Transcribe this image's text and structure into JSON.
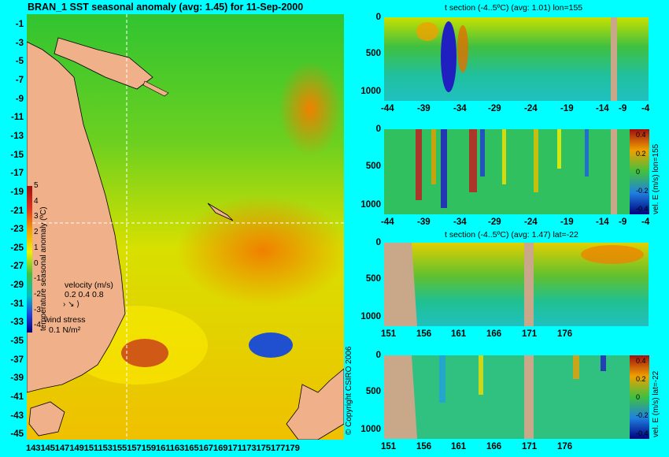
{
  "map": {
    "title": "BRAN_1  SST seasonal anomaly  (avg: 1.45) for 11-Sep-2000",
    "lat_ticks": [
      "-1",
      "-3",
      "-5",
      "-7",
      "-9",
      "-11",
      "-13",
      "-15",
      "-17",
      "-19",
      "-21",
      "-23",
      "-25",
      "-27",
      "-29",
      "-31",
      "-33",
      "-35",
      "-37",
      "-39",
      "-41",
      "-43",
      "-45"
    ],
    "lon_ticks_text": "143145147149151153155157159161163165167169171173175177179",
    "colorbar": {
      "label": "temperature seasonal anomaly (ºC)",
      "ticks": [
        "5",
        "4",
        "3",
        "2",
        "1",
        "0",
        "-1",
        "-2",
        "-3",
        "-4"
      ]
    },
    "velocity_key": {
      "label": "velocity (m/s)",
      "values": "0.2 0.4 0.8"
    },
    "wind_key": {
      "label": "wind stress",
      "value": "0.1 N/m²"
    },
    "crosshair": {
      "lon": 155,
      "lat": -22
    },
    "colors": {
      "land": "#f0b08a",
      "background": "#00ffff",
      "crosshair": "#ffffff"
    }
  },
  "panels": [
    {
      "title": "t section (-4..5ºC) (avg: 1.01) lon=155",
      "xticks": [
        "-44",
        "-39",
        "-34",
        "-29",
        "-24",
        "-19",
        "-14",
        "-9",
        "-4"
      ],
      "yticks": [
        "0",
        "500",
        "1000"
      ]
    },
    {
      "title": "",
      "xticks": [
        "-44",
        "-39",
        "-34",
        "-29",
        "-24",
        "-19",
        "-14",
        "-9",
        "-4"
      ],
      "yticks": [
        "0",
        "500",
        "1000"
      ],
      "side_label": "vel. E (m/s) lon=155",
      "colorbar_ticks": [
        "0.4",
        "0.2",
        "0",
        "-0.2",
        "-0.4"
      ]
    },
    {
      "title": "t section (-4..5ºC) (avg: 1.47) lat=-22",
      "xticks": [
        "151",
        "156",
        "161",
        "166",
        "171",
        "176"
      ],
      "yticks": [
        "0",
        "500",
        "1000"
      ]
    },
    {
      "title": "",
      "xticks": [
        "151",
        "156",
        "161",
        "166",
        "171",
        "176"
      ],
      "yticks": [
        "0",
        "500",
        "1000"
      ],
      "side_label": "vel. E (m/s) lat=-22",
      "colorbar_ticks": [
        "0.4",
        "0.2",
        "0",
        "-0.2",
        "-0.4"
      ]
    }
  ],
  "copyright": "© Copyright CSIRO 2006"
}
